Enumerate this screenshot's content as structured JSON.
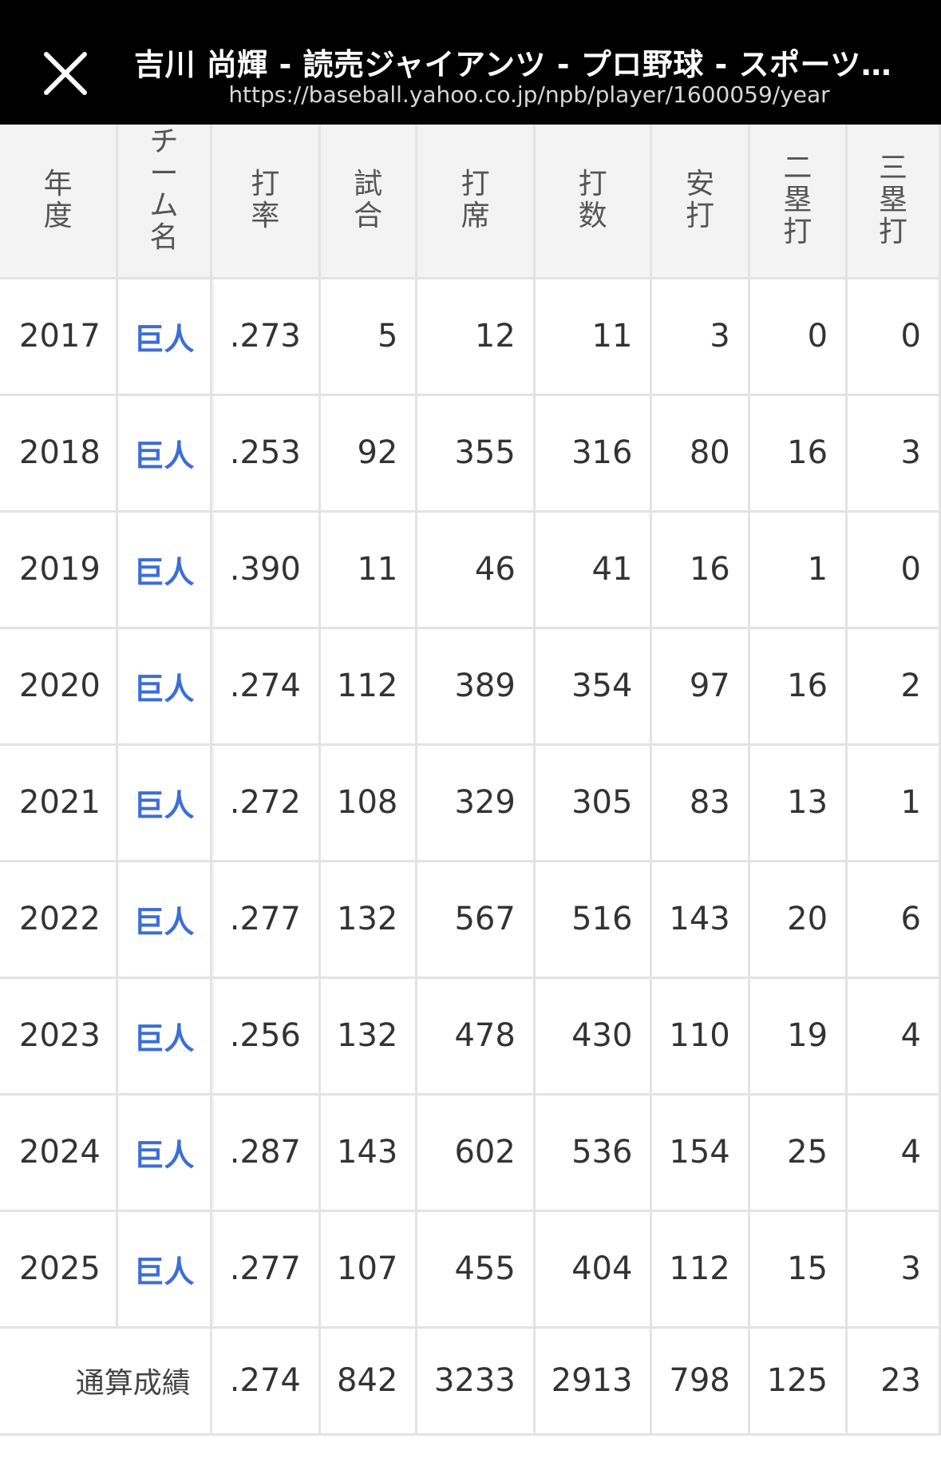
{
  "header": {
    "title": "吉川 尚輝 - 読売ジャイアンツ - プロ野球 - スポーツ…",
    "url": "https://baseball.yahoo.co.jp/npb/player/1600059/year"
  },
  "table": {
    "columns": [
      "年度",
      "チーム名",
      "打率",
      "試合",
      "打席",
      "打数",
      "安打",
      "二塁打",
      "三塁打"
    ],
    "rows": [
      {
        "year": "2017",
        "team": "巨人",
        "avg": ".273",
        "g": "5",
        "pa": "12",
        "ab": "11",
        "h": "3",
        "d": "0",
        "t": "0"
      },
      {
        "year": "2018",
        "team": "巨人",
        "avg": ".253",
        "g": "92",
        "pa": "355",
        "ab": "316",
        "h": "80",
        "d": "16",
        "t": "3"
      },
      {
        "year": "2019",
        "team": "巨人",
        "avg": ".390",
        "g": "11",
        "pa": "46",
        "ab": "41",
        "h": "16",
        "d": "1",
        "t": "0"
      },
      {
        "year": "2020",
        "team": "巨人",
        "avg": ".274",
        "g": "112",
        "pa": "389",
        "ab": "354",
        "h": "97",
        "d": "16",
        "t": "2"
      },
      {
        "year": "2021",
        "team": "巨人",
        "avg": ".272",
        "g": "108",
        "pa": "329",
        "ab": "305",
        "h": "83",
        "d": "13",
        "t": "1"
      },
      {
        "year": "2022",
        "team": "巨人",
        "avg": ".277",
        "g": "132",
        "pa": "567",
        "ab": "516",
        "h": "143",
        "d": "20",
        "t": "6"
      },
      {
        "year": "2023",
        "team": "巨人",
        "avg": ".256",
        "g": "132",
        "pa": "478",
        "ab": "430",
        "h": "110",
        "d": "19",
        "t": "4"
      },
      {
        "year": "2024",
        "team": "巨人",
        "avg": ".287",
        "g": "143",
        "pa": "602",
        "ab": "536",
        "h": "154",
        "d": "25",
        "t": "4"
      },
      {
        "year": "2025",
        "team": "巨人",
        "avg": ".277",
        "g": "107",
        "pa": "455",
        "ab": "404",
        "h": "112",
        "d": "15",
        "t": "3"
      }
    ],
    "total": {
      "label": "通算成績",
      "avg": ".274",
      "g": "842",
      "pa": "3233",
      "ab": "2913",
      "h": "798",
      "d": "125",
      "t": "23"
    }
  },
  "colors": {
    "link": "#3b6ed7",
    "header_bg": "#f3f3f3",
    "topbar": "#000000"
  },
  "icons": {
    "close": "close-icon"
  }
}
